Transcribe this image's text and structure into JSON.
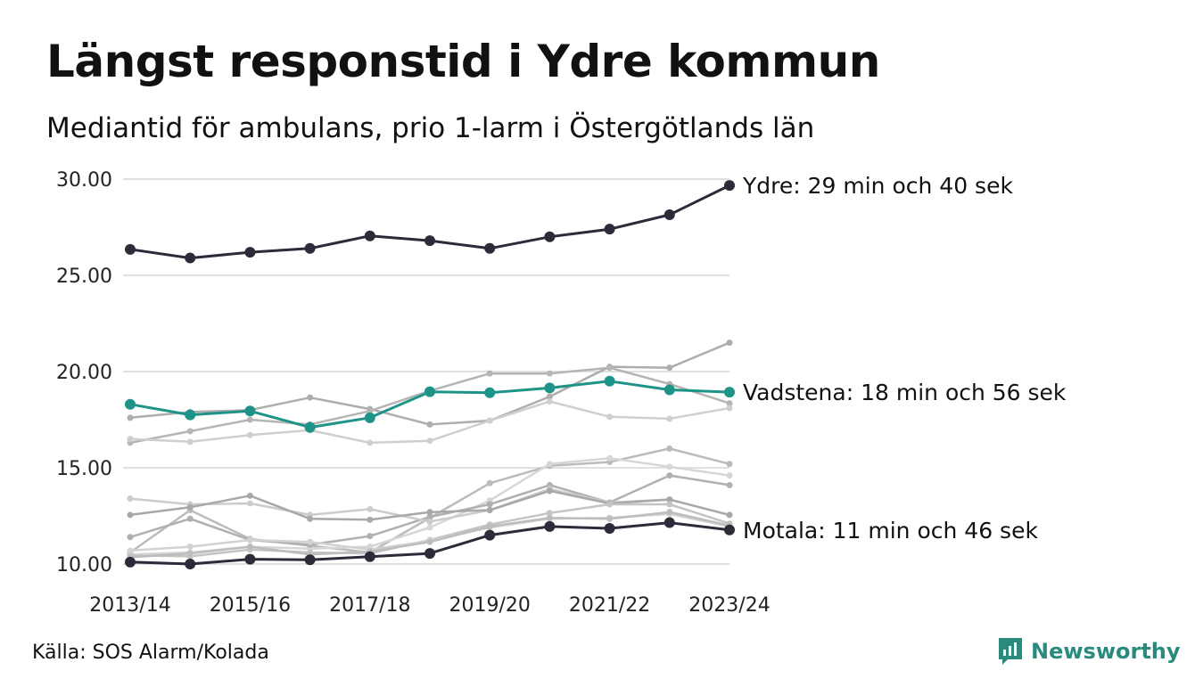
{
  "title": "Längst responstid i Ydre kommun",
  "subtitle": "Mediantid för ambulans, prio 1-larm i Östergötlands län",
  "source": "Källa: SOS Alarm/Kolada",
  "brand": {
    "name": "Newsworthy",
    "color": "#2a8a7e",
    "icon": "newsworthy-logo-icon"
  },
  "colors": {
    "ydre": "#2b2b3a",
    "vadstena": "#1e9488",
    "motala": "#2b2b3a",
    "grid": "#e0e0e0"
  },
  "chart_data": {
    "type": "line",
    "x": [
      "2013/14",
      "2014/15",
      "2015/16",
      "2016/17",
      "2017/18",
      "2018/19",
      "2019/20",
      "2020/21",
      "2021/22",
      "2022/23",
      "2023/24"
    ],
    "x_tick_labels": [
      "2013/14",
      "2015/16",
      "2017/18",
      "2019/20",
      "2021/22",
      "2023/24"
    ],
    "ylim": [
      10,
      30
    ],
    "y_ticks": [
      "10.00",
      "15.00",
      "20.00",
      "25.00",
      "30.00"
    ],
    "grid": true,
    "highlighted": [
      {
        "key": "ydre",
        "label": "Ydre: 29 min och 40 sek",
        "color": "#2b2b3a",
        "values": [
          26.35,
          25.9,
          26.2,
          26.4,
          27.05,
          26.8,
          26.4,
          27.0,
          27.4,
          28.15,
          29.67
        ]
      },
      {
        "key": "vadstena",
        "label": "Vadstena: 18 min och 56 sek",
        "color": "#1e9488",
        "values": [
          18.3,
          17.75,
          17.95,
          17.1,
          17.6,
          18.95,
          18.9,
          19.15,
          19.5,
          19.05,
          18.93
        ]
      },
      {
        "key": "motala",
        "label": "Motala: 11 min och 46 sek",
        "color": "#2b2b3a",
        "values": [
          10.1,
          10.0,
          10.25,
          10.22,
          10.38,
          10.55,
          11.5,
          11.95,
          11.85,
          12.15,
          11.77
        ]
      }
    ],
    "background_series": [
      {
        "color": "#adadad",
        "values": [
          17.6,
          17.9,
          18.0,
          18.65,
          18.05,
          17.25,
          17.45,
          18.7,
          20.25,
          20.2,
          21.5
        ]
      },
      {
        "color": "#b5b5b5",
        "values": [
          16.3,
          16.9,
          17.5,
          17.25,
          17.95,
          19.0,
          19.9,
          19.9,
          20.2,
          19.35,
          18.35
        ]
      },
      {
        "color": "#cfcfcf",
        "values": [
          16.5,
          16.35,
          16.7,
          16.95,
          16.3,
          16.4,
          17.45,
          18.45,
          17.65,
          17.55,
          18.1
        ]
      },
      {
        "color": "#bbbbbb",
        "values": [
          10.6,
          12.8,
          11.3,
          10.95,
          10.6,
          12.4,
          14.2,
          15.1,
          15.3,
          16.0,
          15.2
        ]
      },
      {
        "color": "#d6d6d6",
        "values": [
          10.5,
          10.6,
          10.9,
          10.8,
          10.9,
          11.9,
          13.3,
          15.2,
          15.5,
          15.05,
          14.6
        ]
      },
      {
        "color": "#b0b0b0",
        "values": [
          11.4,
          12.35,
          11.25,
          11.0,
          11.45,
          12.45,
          13.1,
          14.1,
          13.2,
          14.6,
          14.1
        ]
      },
      {
        "color": "#cccccc",
        "values": [
          13.4,
          13.1,
          13.15,
          12.55,
          12.85,
          12.2,
          12.8,
          13.9,
          13.2,
          13.35,
          12.55
        ]
      },
      {
        "color": "#a8a8a8",
        "values": [
          12.55,
          12.95,
          13.55,
          12.35,
          12.3,
          12.7,
          12.8,
          13.8,
          13.15,
          13.35,
          12.55
        ]
      },
      {
        "color": "#c4c4c4",
        "values": [
          10.45,
          10.4,
          10.75,
          10.6,
          10.55,
          11.25,
          12.05,
          12.65,
          13.1,
          13.1,
          12.1
        ]
      },
      {
        "color": "#d2d2d2",
        "values": [
          10.7,
          10.9,
          11.25,
          11.15,
          10.75,
          11.2,
          11.9,
          12.35,
          12.4,
          12.6,
          11.95
        ]
      },
      {
        "color": "#bdbdbd",
        "values": [
          10.35,
          10.55,
          10.9,
          10.5,
          10.65,
          11.15,
          11.95,
          12.4,
          12.35,
          12.7,
          12.0
        ]
      }
    ]
  }
}
